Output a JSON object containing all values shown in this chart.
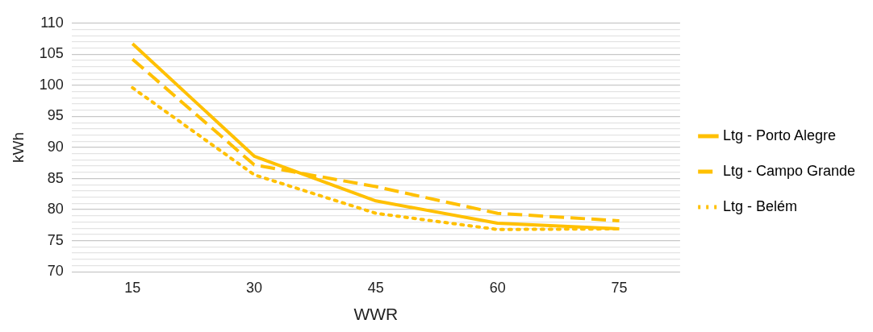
{
  "chart_data": {
    "type": "line",
    "xlabel": "WWR",
    "ylabel": "kWh",
    "categories": [
      "15",
      "30",
      "45",
      "60",
      "75"
    ],
    "series": [
      {
        "name": "Ltg - Porto Alegre",
        "color": "#ffc000",
        "line_style": "solid",
        "values": [
          106.7,
          88.6,
          81.4,
          77.8,
          76.9
        ]
      },
      {
        "name": "Ltg - Campo Grande",
        "color": "#ffc000",
        "line_style": "dashed",
        "values": [
          104.2,
          87.2,
          83.7,
          79.4,
          78.2
        ]
      },
      {
        "name": "Ltg - Belém",
        "color": "#ffc000",
        "line_style": "dotted",
        "values": [
          99.6,
          85.6,
          79.4,
          76.8,
          76.9
        ]
      }
    ],
    "ylim": [
      70,
      110
    ],
    "yticks": [
      70,
      {
        "value": 71,
        "label": null
      },
      {
        "value": 72,
        "label": null
      },
      {
        "value": 73,
        "label": null
      },
      {
        "value": 74,
        "label": null
      },
      75,
      {
        "value": 76,
        "label": null
      },
      {
        "value": 77,
        "label": null
      },
      {
        "value": 78,
        "label": null
      },
      {
        "value": 79,
        "label": null
      },
      80,
      {
        "value": 81,
        "label": null
      },
      {
        "value": 82,
        "label": null
      },
      {
        "value": 83,
        "label": null
      },
      {
        "value": 84,
        "label": null
      },
      85,
      {
        "value": 86,
        "label": null
      },
      {
        "value": 87,
        "label": null
      },
      {
        "value": 88,
        "label": null
      },
      {
        "value": 89,
        "label": null
      },
      90,
      {
        "value": 91,
        "label": null
      },
      {
        "value": 92,
        "label": null
      },
      {
        "value": 93,
        "label": null
      },
      {
        "value": 94,
        "label": null
      },
      95,
      {
        "value": 96,
        "label": null
      },
      {
        "value": 97,
        "label": null
      },
      {
        "value": 98,
        "label": null
      },
      {
        "value": 99,
        "label": null
      },
      100,
      {
        "value": 101,
        "label": null
      },
      {
        "value": 102,
        "label": null
      },
      {
        "value": 103,
        "label": null
      },
      {
        "value": 104,
        "label": null
      },
      105,
      {
        "value": 106,
        "label": null
      },
      {
        "value": 107,
        "label": null
      },
      {
        "value": 108,
        "label": null
      },
      {
        "value": 109,
        "label": null
      },
      110
    ],
    "grid": "y",
    "legend": "right",
    "marker": "none"
  }
}
